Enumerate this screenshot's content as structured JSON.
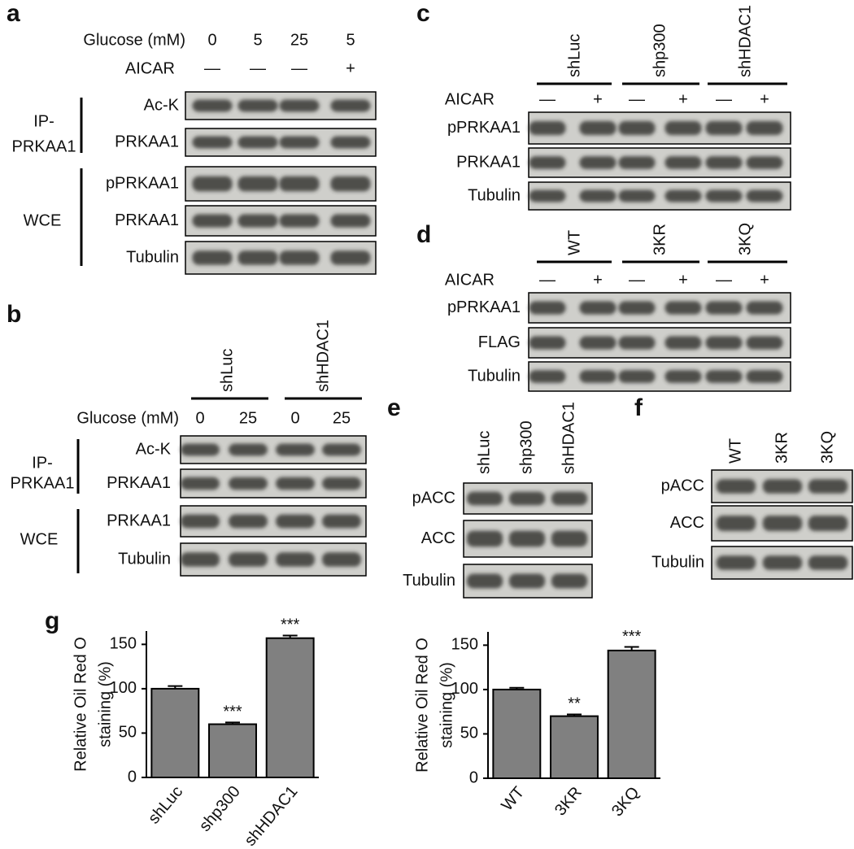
{
  "panels": [
    {
      "label": "a",
      "conditions": [
        {
          "name": "Glucose (mM)",
          "values": [
            "0",
            "5",
            "25",
            "5"
          ]
        },
        {
          "name": "AICAR",
          "values": [
            "—",
            "—",
            "—",
            "+"
          ]
        }
      ],
      "groups": [
        {
          "lines": [
            "IP-",
            "PRKAA1"
          ],
          "blots": [
            "Ac-K",
            "PRKAA1"
          ]
        },
        {
          "lines": [
            "WCE"
          ],
          "blots": [
            "pPRKAA1",
            "PRKAA1",
            "Tubulin"
          ]
        }
      ]
    },
    {
      "label": "b",
      "sample_groups": [
        "shLuc",
        "shHDAC1"
      ],
      "conditions": [
        {
          "name": "Glucose (mM)",
          "values": [
            "0",
            "25",
            "0",
            "25"
          ]
        }
      ],
      "groups": [
        {
          "lines": [
            "IP-",
            "PRKAA1"
          ],
          "blots": [
            "Ac-K",
            "PRKAA1"
          ]
        },
        {
          "lines": [
            "WCE"
          ],
          "blots": [
            "PRKAA1",
            "Tubulin"
          ]
        }
      ]
    },
    {
      "label": "c",
      "sample_groups": [
        "shLuc",
        "shp300",
        "shHDAC1"
      ],
      "conditions": [
        {
          "name": "AICAR",
          "values": [
            "—",
            "+",
            "—",
            "+",
            "—",
            "+"
          ]
        }
      ],
      "blots": [
        "pPRKAA1",
        "PRKAA1",
        "Tubulin"
      ]
    },
    {
      "label": "d",
      "sample_groups": [
        "WT",
        "3KR",
        "3KQ"
      ],
      "conditions": [
        {
          "name": "AICAR",
          "values": [
            "—",
            "+",
            "—",
            "+",
            "—",
            "+"
          ]
        }
      ],
      "blots": [
        "pPRKAA1",
        "FLAG",
        "Tubulin"
      ]
    },
    {
      "label": "e",
      "lanes": [
        "shLuc",
        "shp300",
        "shHDAC1"
      ],
      "blots": [
        "pACC",
        "ACC",
        "Tubulin"
      ]
    },
    {
      "label": "f",
      "lanes": [
        "WT",
        "3KR",
        "3KQ"
      ],
      "blots": [
        "pACC",
        "ACC",
        "Tubulin"
      ]
    }
  ],
  "chart_data": [
    {
      "type": "bar",
      "figure_label": "g",
      "ylabel": [
        "Relative Oil Red O",
        "staining (%)"
      ],
      "categories": [
        "shLuc",
        "shp300",
        "shHDAC1"
      ],
      "values": [
        100,
        60,
        157
      ],
      "errors": [
        3,
        2,
        3
      ],
      "annotations": [
        null,
        "***",
        "***"
      ],
      "color": "#808080",
      "ylim": [
        0,
        165
      ],
      "yticks": [
        0,
        50,
        100,
        150
      ]
    },
    {
      "type": "bar",
      "ylabel": [
        "Relative Oil Red O",
        "staining (%)"
      ],
      "categories": [
        "WT",
        "3KR",
        "3KQ"
      ],
      "values": [
        100,
        70,
        144
      ],
      "errors": [
        2,
        2,
        4
      ],
      "annotations": [
        null,
        "**",
        "***"
      ],
      "color": "#808080",
      "ylim": [
        0,
        165
      ],
      "yticks": [
        0,
        50,
        100,
        150
      ]
    }
  ]
}
